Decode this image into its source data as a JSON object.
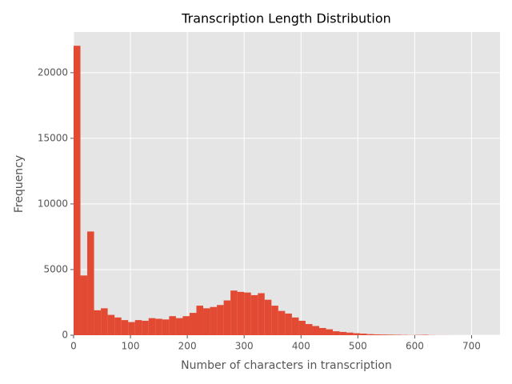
{
  "chart_data": {
    "type": "histogram",
    "title": "Transcription Length Distribution",
    "x_label": "Number of characters in transcription",
    "y_label": "Frequency",
    "color": "#E24A33",
    "bins": [
      0,
      12,
      24,
      36,
      48,
      60,
      72,
      84,
      96,
      108,
      120,
      132,
      144,
      156,
      168,
      180,
      192,
      204,
      216,
      228,
      240,
      252,
      264,
      276,
      288,
      300,
      312,
      324,
      336,
      348,
      360,
      372,
      384,
      396,
      408,
      420,
      432,
      444,
      456,
      468,
      480,
      492,
      504,
      516,
      528,
      540,
      552,
      564,
      576,
      588,
      600,
      612,
      624,
      636,
      648,
      660,
      672,
      684,
      696,
      708,
      720
    ],
    "values": [
      22050,
      4550,
      7900,
      1900,
      2050,
      1550,
      1350,
      1150,
      1000,
      1150,
      1100,
      1300,
      1250,
      1200,
      1450,
      1300,
      1450,
      1700,
      2250,
      2050,
      2150,
      2300,
      2650,
      3400,
      3300,
      3250,
      3050,
      3200,
      2700,
      2250,
      1850,
      1650,
      1350,
      1100,
      850,
      700,
      550,
      450,
      300,
      250,
      200,
      150,
      120,
      80,
      60,
      50,
      40,
      30,
      20,
      10,
      20,
      30,
      10,
      5,
      5,
      3,
      2,
      2,
      1,
      1
    ],
    "xlim": [
      0,
      750
    ],
    "ylim": [
      0,
      23100
    ],
    "xticks": [
      0,
      100,
      200,
      300,
      400,
      500,
      600,
      700
    ],
    "yticks": [
      0,
      5000,
      10000,
      15000,
      20000
    ],
    "grid": true
  }
}
